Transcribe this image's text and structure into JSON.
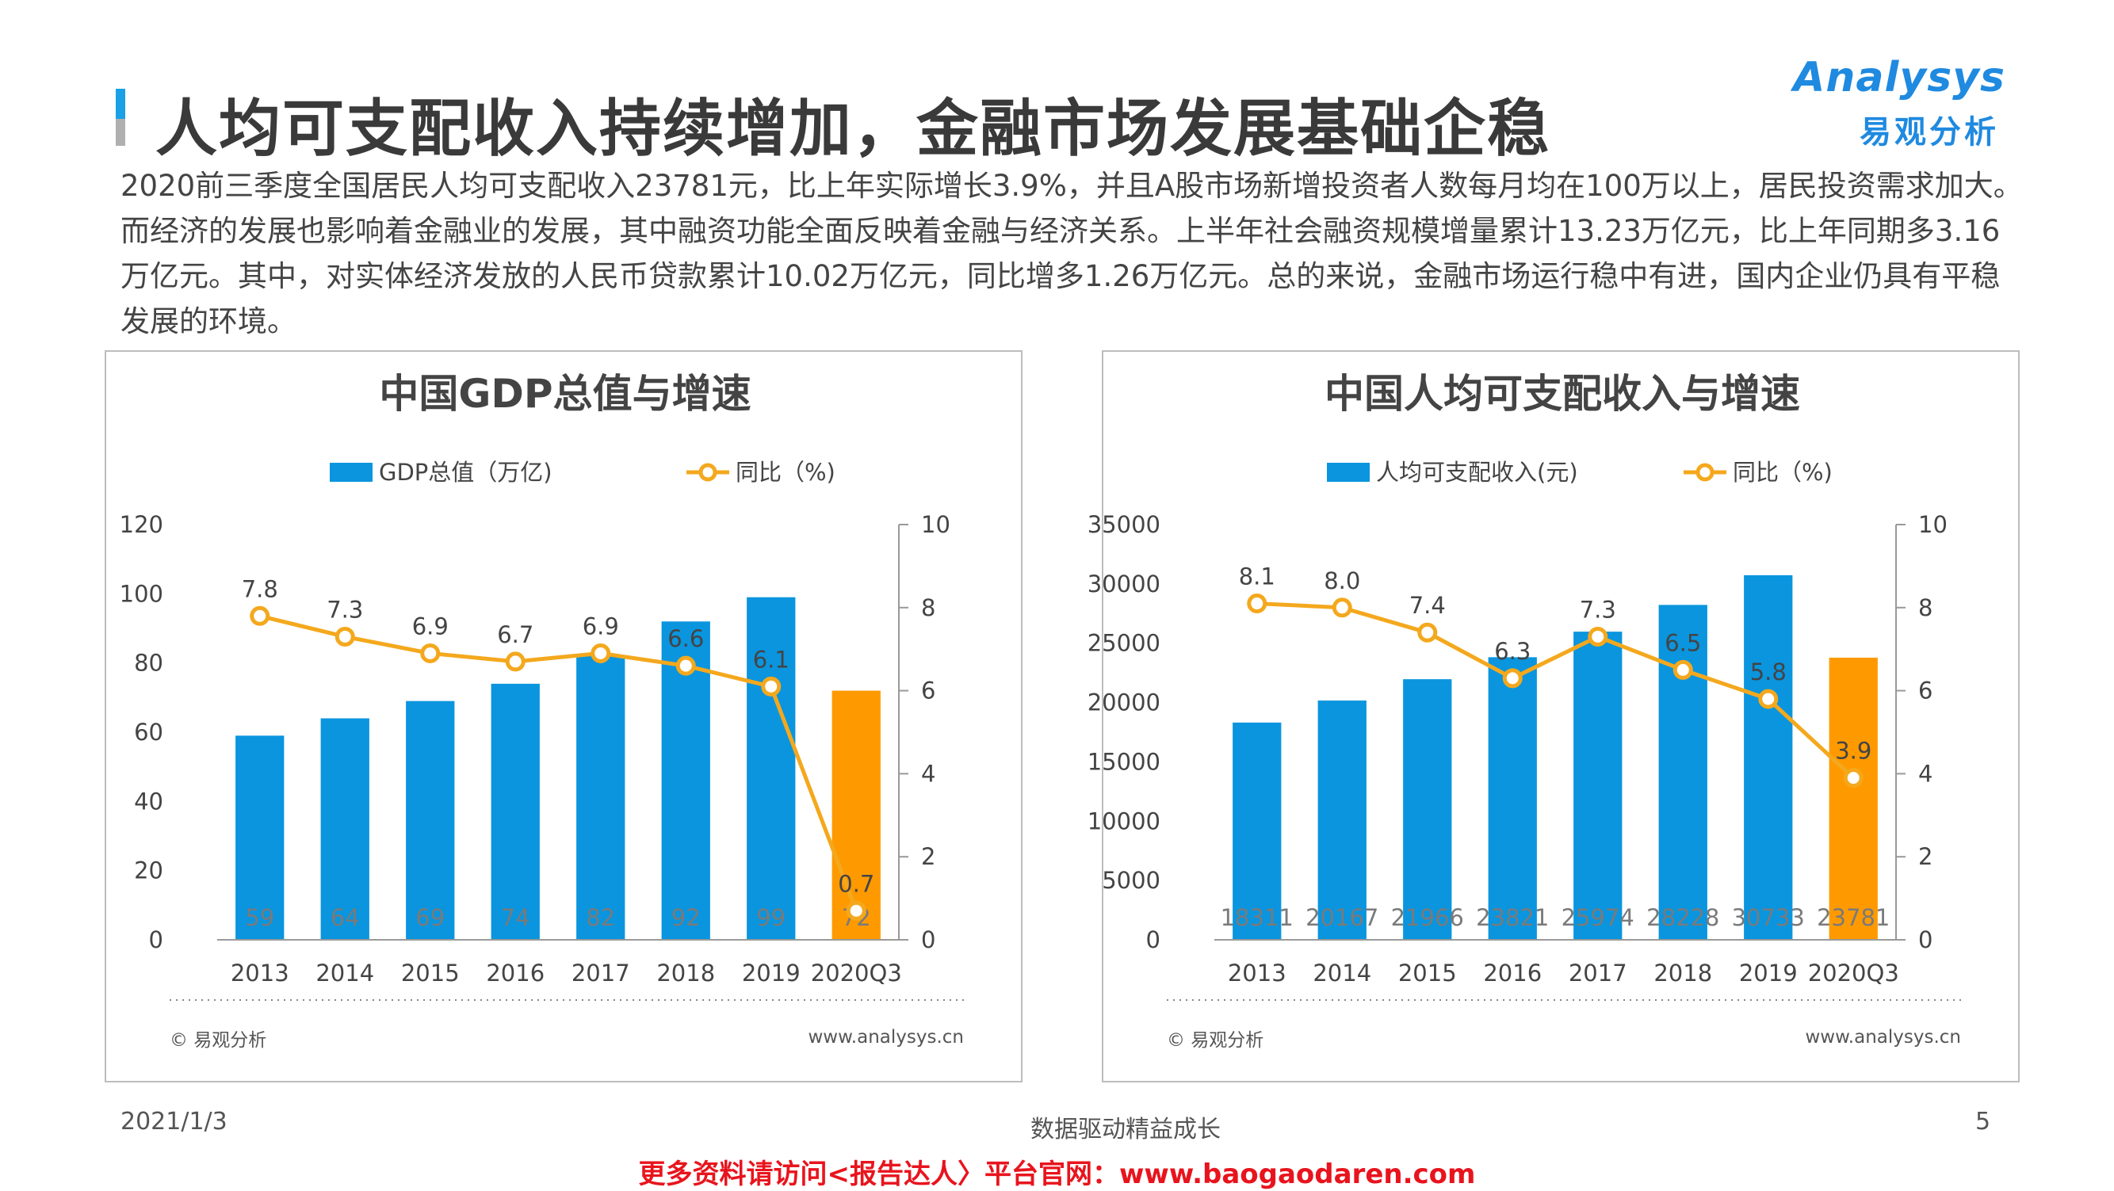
{
  "header": {
    "title": "人均可支配收入持续增加，金融市场发展基础企稳",
    "logo_en": "Analysys",
    "logo_cn": "易观分析"
  },
  "intro": "2020前三季度全国居民人均可支配收入23781元，比上年实际增长3.9%，并且A股市场新增投资者人数每月均在100万以上，居民投资需求加大。而经济的发展也影响着金融业的发展，其中融资功能全面反映着金融与经济关系。上半年社会融资规模增量累计13.23万亿元，比上年同期多3.16万亿元。其中，对实体经济发放的人民币贷款累计10.02万亿元，同比增多1.26万亿元。总的来说，金融市场运行稳中有进，国内企业仍具有平稳发展的环境。",
  "footer": {
    "date": "2021/1/3",
    "slogan": "数据驱动精益成长",
    "page": "5",
    "promo": "更多资料请访问<报告达人〉平台官网：www.baogaodaren.com"
  },
  "colors": {
    "bar": "#0a95de",
    "bar_highlight": "#fe9a00",
    "line": "#f4a81d",
    "title_bar_top": "#1aa0e6",
    "title_bar_bottom": "#b0b0b0"
  },
  "chart_data": [
    {
      "type": "bar",
      "title": "中国GDP总值与增速",
      "categories": [
        "2013",
        "2014",
        "2015",
        "2016",
        "2017",
        "2018",
        "2019",
        "2020Q3"
      ],
      "series": [
        {
          "name": "GDP总值（万亿)",
          "type": "bar",
          "axis": "left",
          "values": [
            59,
            64,
            69,
            74,
            82,
            92,
            99,
            72
          ]
        },
        {
          "name": "同比（%)",
          "type": "line",
          "axis": "right",
          "values": [
            7.8,
            7.3,
            6.9,
            6.7,
            6.9,
            6.6,
            6.1,
            0.7
          ]
        }
      ],
      "ylim_left": [
        0,
        120
      ],
      "yticks_left": [
        0,
        20,
        40,
        60,
        80,
        100,
        120
      ],
      "ylim_right": [
        0,
        10
      ],
      "yticks_right": [
        0,
        2,
        4,
        6,
        8,
        10
      ],
      "legend": "top-center",
      "source_left": "© 易观分析",
      "source_right": "www.analysys.cn"
    },
    {
      "type": "bar",
      "title": "中国人均可支配收入与增速",
      "categories": [
        "2013",
        "2014",
        "2015",
        "2016",
        "2017",
        "2018",
        "2019",
        "2020Q3"
      ],
      "series": [
        {
          "name": "人均可支配收入(元)",
          "type": "bar",
          "axis": "left",
          "values": [
            18311,
            20167,
            21966,
            23821,
            25974,
            28228,
            30733,
            23781
          ]
        },
        {
          "name": "同比（%)",
          "type": "line",
          "axis": "right",
          "values": [
            8.1,
            8.0,
            7.4,
            6.3,
            7.3,
            6.5,
            5.8,
            3.9
          ]
        }
      ],
      "ylim_left": [
        0,
        35000
      ],
      "yticks_left": [
        0,
        5000,
        10000,
        15000,
        20000,
        25000,
        30000,
        35000
      ],
      "ylim_right": [
        0,
        10
      ],
      "yticks_right": [
        0,
        2,
        4,
        6,
        8,
        10
      ],
      "legend": "top-center",
      "source_left": "© 易观分析",
      "source_right": "www.analysys.cn"
    }
  ]
}
